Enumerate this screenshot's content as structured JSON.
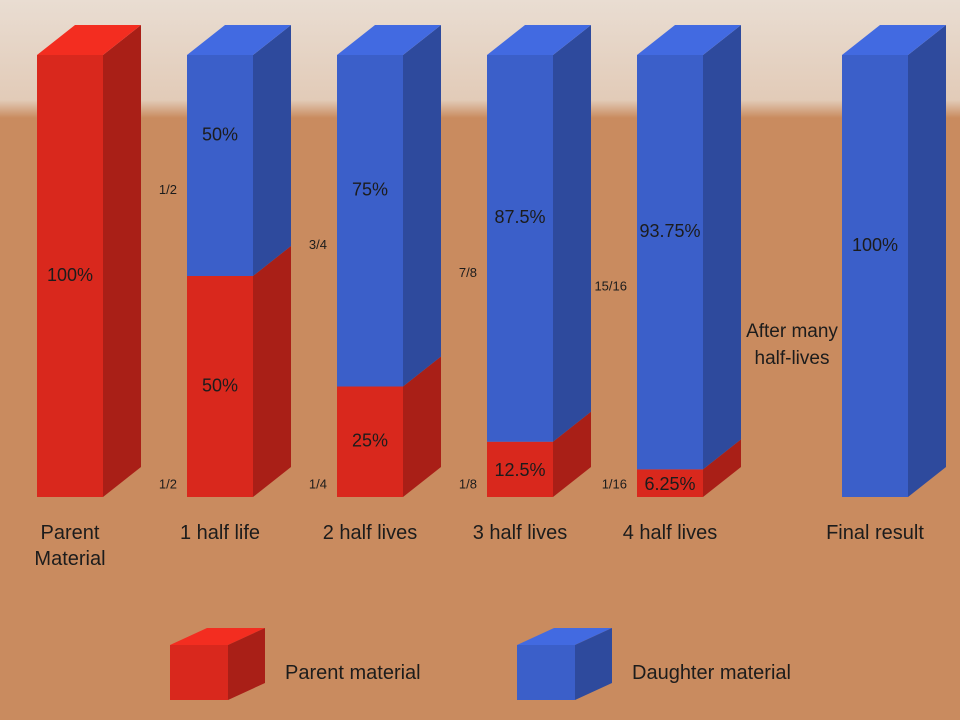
{
  "chart_data": {
    "type": "stacked-3d-bar",
    "categories": [
      "Parent Material",
      "1 half life",
      "2 half lives",
      "3 half lives",
      "4 half lives",
      "Final result"
    ],
    "ylim": [
      0,
      100
    ],
    "series": [
      {
        "name": "Parent material",
        "color": "#d9281d",
        "values": [
          100,
          50,
          25,
          12.5,
          6.25,
          0
        ],
        "value_labels": [
          "100%",
          "50%",
          "25%",
          "12.5%",
          "6.25%",
          null
        ],
        "fraction_labels": [
          null,
          "1/2",
          "1/4",
          "1/8",
          "1/16",
          null
        ]
      },
      {
        "name": "Daughter material",
        "color": "#3b5fc9",
        "values": [
          0,
          50,
          75,
          87.5,
          93.75,
          100
        ],
        "value_labels": [
          null,
          "50%",
          "75%",
          "87.5%",
          "93.75%",
          "100%"
        ],
        "fraction_labels": [
          null,
          "1/2",
          "3/4",
          "7/8",
          "15/16",
          null
        ]
      }
    ],
    "annotation": "After many half-lives"
  }
}
